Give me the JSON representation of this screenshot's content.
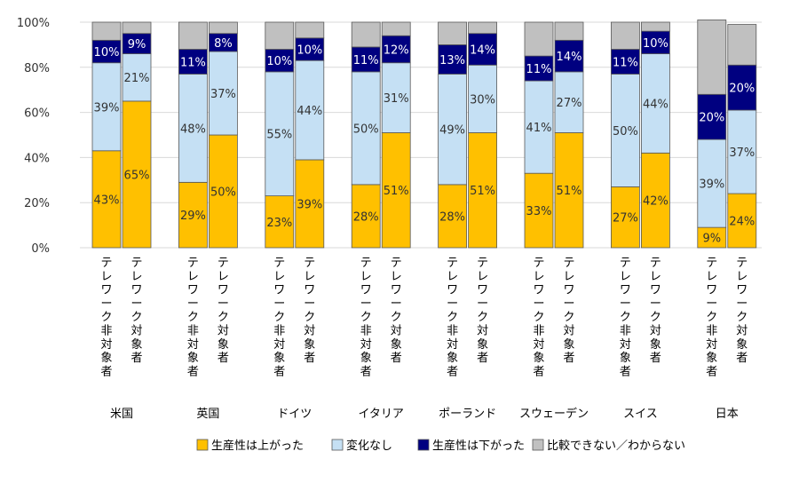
{
  "chart_data": {
    "type": "bar",
    "stacked": true,
    "y_ticks": [
      "0%",
      "20%",
      "40%",
      "60%",
      "80%",
      "100%"
    ],
    "ylim": [
      0,
      100
    ],
    "grid": true,
    "legend_position": "bottom",
    "bar_labels": [
      "テレワーク非対象者",
      "テレワーク対象者"
    ],
    "groups": [
      "米国",
      "英国",
      "ドイツ",
      "イタリア",
      "ポーランド",
      "スウェーデン",
      "スイス",
      "日本"
    ],
    "series": [
      {
        "name": "生産性は上がった",
        "color": "#FFC000",
        "label_color": "#333333",
        "values": [
          [
            43,
            65
          ],
          [
            29,
            50
          ],
          [
            23,
            39
          ],
          [
            28,
            51
          ],
          [
            28,
            51
          ],
          [
            33,
            51
          ],
          [
            27,
            42
          ],
          [
            9,
            24
          ]
        ]
      },
      {
        "name": "変化なし",
        "color": "#C5E0F4",
        "label_color": "#333333",
        "values": [
          [
            39,
            21
          ],
          [
            48,
            37
          ],
          [
            55,
            44
          ],
          [
            50,
            31
          ],
          [
            49,
            30
          ],
          [
            41,
            27
          ],
          [
            50,
            44
          ],
          [
            39,
            37
          ]
        ]
      },
      {
        "name": "生産性は下がった",
        "color": "#000080",
        "label_color": "#ffffff",
        "values": [
          [
            10,
            9
          ],
          [
            11,
            8
          ],
          [
            10,
            10
          ],
          [
            11,
            12
          ],
          [
            13,
            14
          ],
          [
            11,
            14
          ],
          [
            11,
            10
          ],
          [
            20,
            20
          ]
        ]
      },
      {
        "name": "比較できない／わからない",
        "color": "#C0C0C0",
        "label_color": "#333333",
        "values": [
          [
            8,
            5
          ],
          [
            12,
            5
          ],
          [
            12,
            7
          ],
          [
            11,
            6
          ],
          [
            10,
            5
          ],
          [
            15,
            8
          ],
          [
            12,
            4
          ],
          [
            33,
            18
          ]
        ]
      }
    ]
  }
}
